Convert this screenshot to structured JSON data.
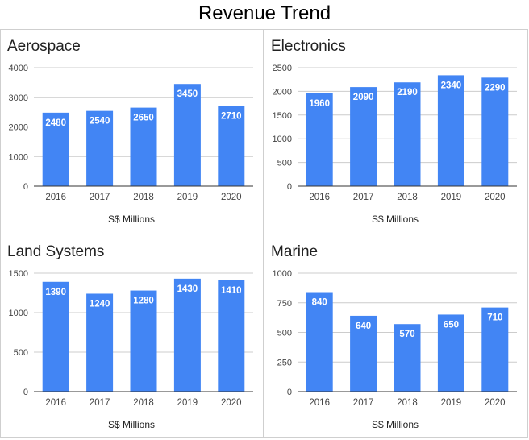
{
  "title": "Revenue Trend",
  "colors": {
    "bar": "#4285f4",
    "grid": "#cccccc",
    "axis": "#333333",
    "bar_label": "#ffffff",
    "tick": "#444444"
  },
  "chart_data": [
    {
      "type": "bar",
      "title": "Aerospace",
      "xlabel": "S$ Millions",
      "ylabel": "",
      "categories": [
        "2016",
        "2017",
        "2018",
        "2019",
        "2020"
      ],
      "values": [
        2480,
        2540,
        2650,
        3450,
        2710
      ],
      "ylim": [
        0,
        4000
      ],
      "yticks": [
        0,
        1000,
        2000,
        3000,
        4000
      ],
      "grid": true,
      "data_labels": true
    },
    {
      "type": "bar",
      "title": "Electronics",
      "xlabel": "S$ Millions",
      "ylabel": "",
      "categories": [
        "2016",
        "2017",
        "2018",
        "2019",
        "2020"
      ],
      "values": [
        1960,
        2090,
        2190,
        2340,
        2290
      ],
      "ylim": [
        0,
        2500
      ],
      "yticks": [
        0,
        500,
        1000,
        1500,
        2000,
        2500
      ],
      "grid": true,
      "data_labels": true
    },
    {
      "type": "bar",
      "title": "Land Systems",
      "xlabel": "S$ Millions",
      "ylabel": "",
      "categories": [
        "2016",
        "2017",
        "2018",
        "2019",
        "2020"
      ],
      "values": [
        1390,
        1240,
        1280,
        1430,
        1410
      ],
      "ylim": [
        0,
        1500
      ],
      "yticks": [
        0,
        500,
        1000,
        1500
      ],
      "grid": true,
      "data_labels": true
    },
    {
      "type": "bar",
      "title": "Marine",
      "xlabel": "S$ Millions",
      "ylabel": "",
      "categories": [
        "2016",
        "2017",
        "2018",
        "2019",
        "2020"
      ],
      "values": [
        840,
        640,
        570,
        650,
        710
      ],
      "ylim": [
        0,
        1000
      ],
      "yticks": [
        0,
        250,
        500,
        750,
        1000
      ],
      "grid": true,
      "data_labels": true
    }
  ]
}
